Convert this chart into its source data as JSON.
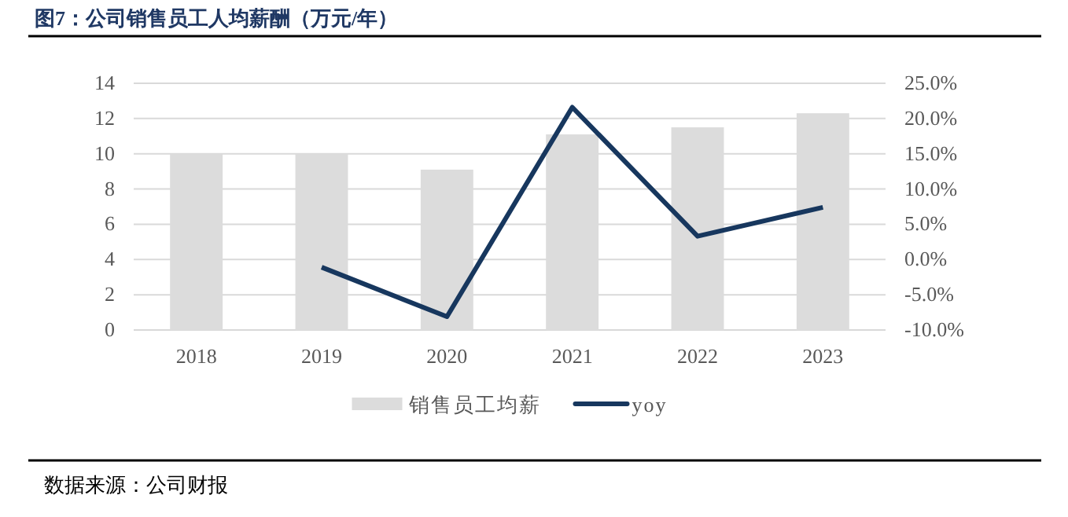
{
  "chart_data": {
    "type": "bar",
    "title": "图7：公司销售员工人均薪酬（万元/年）",
    "categories": [
      "2018",
      "2019",
      "2020",
      "2021",
      "2022",
      "2023"
    ],
    "series": [
      {
        "name": "销售员工均薪",
        "color": "#dcdcdc",
        "values": [
          10.0,
          10.0,
          9.1,
          11.1,
          11.5,
          12.3
        ]
      },
      {
        "name": "yoy",
        "type": "line",
        "axis": "y2",
        "color": "#17375e",
        "values": [
          null,
          -1.1,
          -8.1,
          21.6,
          3.3,
          7.4
        ]
      }
    ],
    "ylim": [
      0,
      14
    ],
    "yticks": [
      0,
      2,
      4,
      6,
      8,
      10,
      12,
      14
    ],
    "y2lim": [
      -10,
      25
    ],
    "y2ticks": [
      {
        "value": -10,
        "label": "-10.0%"
      },
      {
        "value": -5,
        "label": "-5.0%"
      },
      {
        "value": 0,
        "label": "0.0%"
      },
      {
        "value": 5,
        "label": "5.0%"
      },
      {
        "value": 10,
        "label": "10.0%"
      },
      {
        "value": 15,
        "label": "15.0%"
      },
      {
        "value": 20,
        "label": "20.0%"
      },
      {
        "value": 25,
        "label": "25.0%"
      }
    ],
    "grid": "y",
    "legend": "bottom",
    "marker": "none",
    "line_style": "solid",
    "annotations": [
      "数据来源：公司财报"
    ]
  }
}
